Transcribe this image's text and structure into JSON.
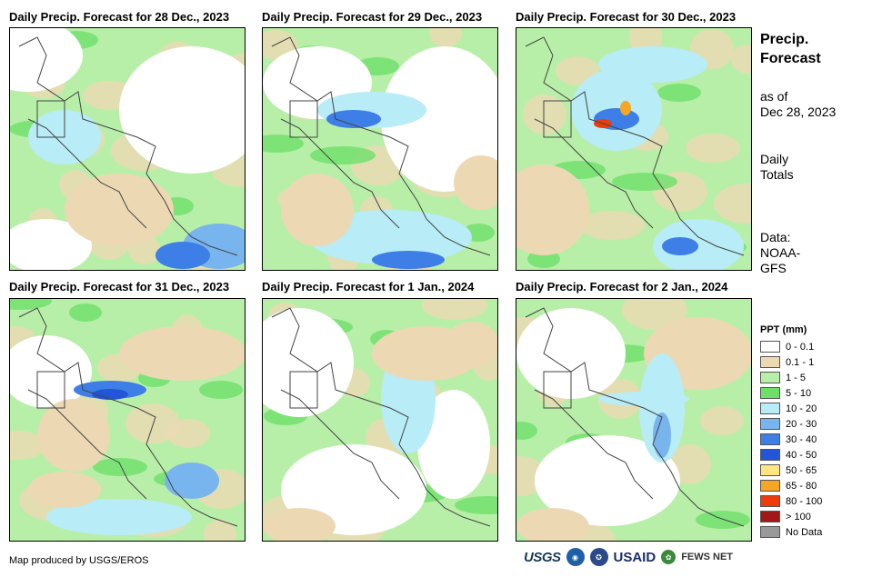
{
  "panels": [
    {
      "title": "Daily Precip. Forecast for 28 Dec., 2023"
    },
    {
      "title": "Daily Precip. Forecast for 29 Dec., 2023"
    },
    {
      "title": "Daily Precip. Forecast for 30 Dec., 2023"
    },
    {
      "title": "Daily Precip. Forecast for 31 Dec., 2023"
    },
    {
      "title": "Daily Precip. Forecast for 1 Jan., 2024"
    },
    {
      "title": "Daily Precip. Forecast for 2 Jan., 2024"
    }
  ],
  "side": {
    "title_line1": "Precip.",
    "title_line2": "Forecast",
    "asof_line1": "as of",
    "asof_line2": "Dec 28, 2023",
    "totals_line1": "Daily",
    "totals_line2": "Totals",
    "data_line1": "Data:",
    "data_line2": "NOAA-",
    "data_line3": "GFS"
  },
  "legend": {
    "title": "PPT (mm)",
    "items": [
      {
        "label": "0 - 0.1",
        "color": "#ffffff"
      },
      {
        "label": "0.1 - 1",
        "color": "#ecd9b4"
      },
      {
        "label": "1 - 5",
        "color": "#b8efa8"
      },
      {
        "label": "5 - 10",
        "color": "#6ee06a"
      },
      {
        "label": "10 - 20",
        "color": "#b8ecf6"
      },
      {
        "label": "20 - 30",
        "color": "#78b4ee"
      },
      {
        "label": "30 - 40",
        "color": "#3d7fe6"
      },
      {
        "label": "40 - 50",
        "color": "#2255d8"
      },
      {
        "label": "50 - 65",
        "color": "#ffe680"
      },
      {
        "label": "65 - 80",
        "color": "#f5a623"
      },
      {
        "label": "80 - 100",
        "color": "#ee3b0c"
      },
      {
        "label": "> 100",
        "color": "#a01818"
      },
      {
        "label": "No Data",
        "color": "#999999"
      }
    ]
  },
  "footer": {
    "credit": "Map produced by USGS/EROS",
    "logo_usgs": "USGS",
    "logo_usaid": "USAID",
    "logo_fews": "FEWS NET"
  }
}
